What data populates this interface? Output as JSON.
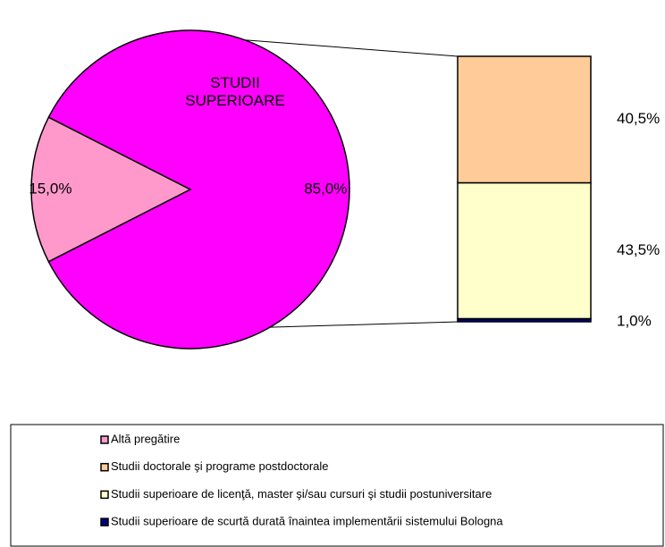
{
  "chart_data": {
    "type": "bar-of-pie",
    "pie": {
      "categories": [
        "Altă pregătire",
        "STUDII SUPERIOARE"
      ],
      "values": [
        15.0,
        85.0
      ],
      "value_labels": [
        "15,0%",
        "85,0%"
      ],
      "colors": [
        "#ff99cc",
        "#ff00ff"
      ]
    },
    "bar": {
      "categories": [
        "Studii doctorale şi programe postdoctorale",
        "Studii superioare de licenţă, master şi/sau cursuri şi studii postuniversitare",
        "Studii superioare de scurtă durată înaintea implementării sistemului Bologna"
      ],
      "values": [
        40.5,
        43.5,
        1.0
      ],
      "value_labels": [
        "40,5%",
        "43,5%",
        "1,0%"
      ],
      "colors": [
        "#ffcc99",
        "#ffffcc",
        "#000080"
      ]
    }
  }
}
